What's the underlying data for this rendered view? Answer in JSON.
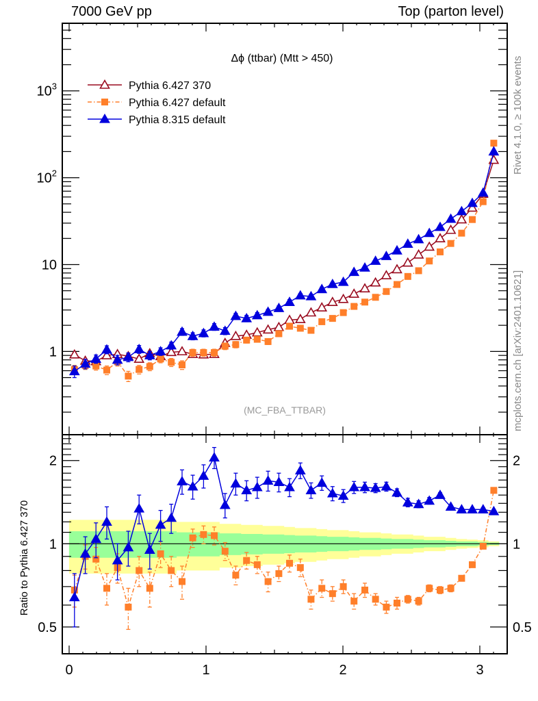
{
  "header": {
    "left": "7000 GeV pp",
    "right": "Top (parton level)"
  },
  "side_labels": {
    "rivet": "Rivet 4.1.0, ≥ 100k events",
    "mcplots": "mcplots.cern.ch [arXiv:2401.10621]"
  },
  "chart_data": [
    {
      "type": "line",
      "panel": "main",
      "title": "Δϕ (ttbar) (Mtt > 450)",
      "watermark": "(MC_FBA_TTBAR)",
      "xlabel": "",
      "ylabel": "",
      "yscale": "log",
      "xlim": [
        -0.05,
        3.2
      ],
      "ylim": [
        0.11,
        6000
      ],
      "yticks": [
        {
          "value": 1,
          "label": "1"
        },
        {
          "value": 10,
          "label": "10"
        },
        {
          "value": 100,
          "label": "10^2"
        },
        {
          "value": 1000,
          "label": "10^3"
        }
      ],
      "legend_position": "top-left",
      "x": [
        0.039,
        0.118,
        0.196,
        0.275,
        0.353,
        0.432,
        0.511,
        0.589,
        0.668,
        0.746,
        0.825,
        0.903,
        0.982,
        1.06,
        1.139,
        1.217,
        1.296,
        1.374,
        1.453,
        1.532,
        1.61,
        1.689,
        1.767,
        1.846,
        1.924,
        2.003,
        2.081,
        2.16,
        2.238,
        2.317,
        2.395,
        2.474,
        2.553,
        2.631,
        2.71,
        2.788,
        2.867,
        2.945,
        3.024,
        3.102
      ],
      "series": [
        {
          "name": "Pythia 6.427 370",
          "color": "#990a1e",
          "marker": "open-triangle",
          "linestyle": "solid",
          "values": [
            0.92,
            0.78,
            0.77,
            0.9,
            0.93,
            0.88,
            0.82,
            0.95,
            0.88,
            0.98,
            1.0,
            0.93,
            0.92,
            0.93,
            1.25,
            1.5,
            1.55,
            1.65,
            1.78,
            1.9,
            2.3,
            2.35,
            2.8,
            3.2,
            3.7,
            4.0,
            4.6,
            5.3,
            6.2,
            7.5,
            8.8,
            10.5,
            13.0,
            16.0,
            20,
            25,
            33,
            45,
            65,
            160
          ],
          "errors": [
            0.05,
            0.04,
            0.04,
            0.05,
            0.05,
            0.05,
            0.05,
            0.05,
            0.05,
            0.05,
            0.05,
            0.05,
            0.05,
            0.05,
            0.06,
            0.06,
            0.06,
            0.07,
            0.07,
            0.07,
            0.08,
            0.08,
            0.09,
            0.1,
            0.1,
            0.1,
            0.1,
            0.1,
            0.1,
            0.1,
            0.1,
            0.1,
            0.1,
            0.2,
            0.2,
            0.3,
            0.3,
            0.4,
            0.5,
            0.8
          ]
        },
        {
          "name": "Pythia 6.427 default",
          "color": "#ff7f2a",
          "marker": "filled-square",
          "linestyle": "dashdot",
          "values": [
            0.62,
            0.69,
            0.68,
            0.61,
            0.76,
            0.52,
            0.62,
            0.67,
            0.82,
            0.75,
            0.7,
            0.97,
            0.97,
            0.97,
            1.15,
            1.2,
            1.35,
            1.38,
            1.3,
            1.6,
            1.95,
            1.85,
            1.75,
            2.2,
            2.4,
            2.8,
            3.3,
            3.7,
            4.2,
            4.9,
            5.9,
            7.3,
            8.5,
            11.0,
            14.0,
            17.5,
            23,
            33,
            53,
            250
          ],
          "errors": [
            0.07,
            0.07,
            0.07,
            0.07,
            0.08,
            0.07,
            0.07,
            0.07,
            0.08,
            0.08,
            0.08,
            0.09,
            0.09,
            0.09,
            0.1,
            0.1,
            0.1,
            0.1,
            0.1,
            0.1,
            0.12,
            0.12,
            0.12,
            0.12,
            0.13,
            0.13,
            0.13,
            0.14,
            0.15,
            0.15,
            0.15,
            0.15,
            0.15,
            0.2,
            0.2,
            0.3,
            0.3,
            0.4,
            0.6,
            1.0
          ]
        },
        {
          "name": "Pythia 8.315 default",
          "color": "#0000dd",
          "marker": "filled-triangle",
          "linestyle": "solid",
          "values": [
            0.59,
            0.72,
            0.82,
            1.05,
            0.8,
            0.86,
            1.06,
            0.9,
            1.0,
            1.17,
            1.68,
            1.5,
            1.62,
            1.92,
            1.72,
            2.55,
            2.4,
            2.6,
            2.85,
            3.15,
            3.7,
            4.4,
            4.3,
            5.2,
            5.95,
            6.3,
            8.2,
            9.2,
            11.0,
            12.5,
            14.5,
            17.3,
            19.5,
            23.0,
            27.0,
            33.5,
            41,
            51,
            67,
            200
          ],
          "errors": [
            0.09,
            0.09,
            0.09,
            0.11,
            0.1,
            0.1,
            0.11,
            0.1,
            0.1,
            0.11,
            0.15,
            0.14,
            0.15,
            0.17,
            0.16,
            0.2,
            0.2,
            0.2,
            0.2,
            0.2,
            0.25,
            0.25,
            0.25,
            0.3,
            0.3,
            0.3,
            0.35,
            0.35,
            0.4,
            0.4,
            0.4,
            0.45,
            0.45,
            0.5,
            0.55,
            0.6,
            0.7,
            0.8,
            1.0,
            1.5
          ]
        }
      ]
    },
    {
      "type": "line",
      "panel": "ratio",
      "ylabel": "Ratio to Pythia 6.427 370",
      "yscale": "log",
      "xlim": [
        -0.05,
        3.2
      ],
      "ylim": [
        0.4,
        2.48
      ],
      "xticks": [
        {
          "value": 0,
          "label": "0"
        },
        {
          "value": 1,
          "label": "1"
        },
        {
          "value": 2,
          "label": "2"
        },
        {
          "value": 3,
          "label": "3"
        }
      ],
      "yticks": [
        {
          "value": 0.5,
          "label": "0.5"
        },
        {
          "value": 1,
          "label": "1"
        },
        {
          "value": 2,
          "label": "2"
        }
      ],
      "reference_line": 1,
      "bands": {
        "inner_color": "#99ff99",
        "outer_color": "#ffff99",
        "inner_halfwidth": [
          0.11,
          0.11,
          0.11,
          0.11,
          0.11,
          0.11,
          0.11,
          0.11,
          0.11,
          0.11,
          0.1,
          0.1,
          0.1,
          0.1,
          0.09,
          0.09,
          0.085,
          0.085,
          0.08,
          0.08,
          0.075,
          0.07,
          0.07,
          0.065,
          0.06,
          0.06,
          0.055,
          0.05,
          0.05,
          0.045,
          0.04,
          0.04,
          0.035,
          0.03,
          0.03,
          0.025,
          0.02,
          0.02,
          0.015,
          0.01
        ],
        "outer_halfwidth": [
          0.22,
          0.22,
          0.22,
          0.22,
          0.22,
          0.22,
          0.22,
          0.22,
          0.22,
          0.22,
          0.2,
          0.2,
          0.2,
          0.2,
          0.18,
          0.18,
          0.17,
          0.17,
          0.16,
          0.16,
          0.15,
          0.14,
          0.14,
          0.13,
          0.12,
          0.12,
          0.11,
          0.1,
          0.1,
          0.09,
          0.08,
          0.08,
          0.07,
          0.06,
          0.06,
          0.05,
          0.04,
          0.035,
          0.03,
          0.02
        ]
      },
      "series": [
        {
          "name": "Pythia 6.427 default",
          "color": "#ff7f2a",
          "marker": "filled-square",
          "linestyle": "dashdot",
          "values": [
            0.68,
            0.9,
            0.88,
            0.69,
            0.82,
            0.59,
            0.8,
            0.69,
            0.92,
            0.8,
            0.73,
            1.05,
            1.08,
            1.07,
            0.94,
            0.77,
            0.87,
            0.84,
            0.73,
            0.78,
            0.85,
            0.82,
            0.63,
            0.69,
            0.66,
            0.7,
            0.62,
            0.68,
            0.63,
            0.59,
            0.61,
            0.63,
            0.62,
            0.69,
            0.68,
            0.69,
            0.75,
            0.84,
            0.98,
            1.56
          ],
          "errors": [
            0.09,
            0.09,
            0.09,
            0.09,
            0.1,
            0.1,
            0.1,
            0.1,
            0.1,
            0.1,
            0.1,
            0.08,
            0.08,
            0.08,
            0.07,
            0.06,
            0.06,
            0.06,
            0.06,
            0.05,
            0.06,
            0.06,
            0.05,
            0.05,
            0.04,
            0.04,
            0.04,
            0.04,
            0.03,
            0.03,
            0.03,
            0.02,
            0.02,
            0.02,
            0.02,
            0.02,
            0.01,
            0.01,
            0.01,
            0.01
          ]
        },
        {
          "name": "Pythia 8.315 default",
          "color": "#0000dd",
          "marker": "filled-triangle",
          "linestyle": "solid",
          "values": [
            0.64,
            0.92,
            1.04,
            1.2,
            0.87,
            0.97,
            1.34,
            0.95,
            1.17,
            1.24,
            1.68,
            1.61,
            1.76,
            2.05,
            1.38,
            1.65,
            1.56,
            1.6,
            1.69,
            1.67,
            1.6,
            1.84,
            1.56,
            1.66,
            1.52,
            1.49,
            1.6,
            1.6,
            1.59,
            1.61,
            1.53,
            1.41,
            1.39,
            1.43,
            1.5,
            1.36,
            1.33,
            1.33,
            1.33,
            1.31
          ],
          "errors": [
            0.14,
            0.14,
            0.15,
            0.16,
            0.13,
            0.14,
            0.16,
            0.14,
            0.15,
            0.15,
            0.17,
            0.16,
            0.17,
            0.18,
            0.14,
            0.15,
            0.13,
            0.14,
            0.14,
            0.13,
            0.12,
            0.12,
            0.1,
            0.1,
            0.09,
            0.08,
            0.08,
            0.07,
            0.06,
            0.06,
            0.05,
            0.05,
            0.04,
            0.04,
            0.03,
            0.02,
            0.02,
            0.02,
            0.02,
            0.02
          ]
        }
      ]
    }
  ]
}
